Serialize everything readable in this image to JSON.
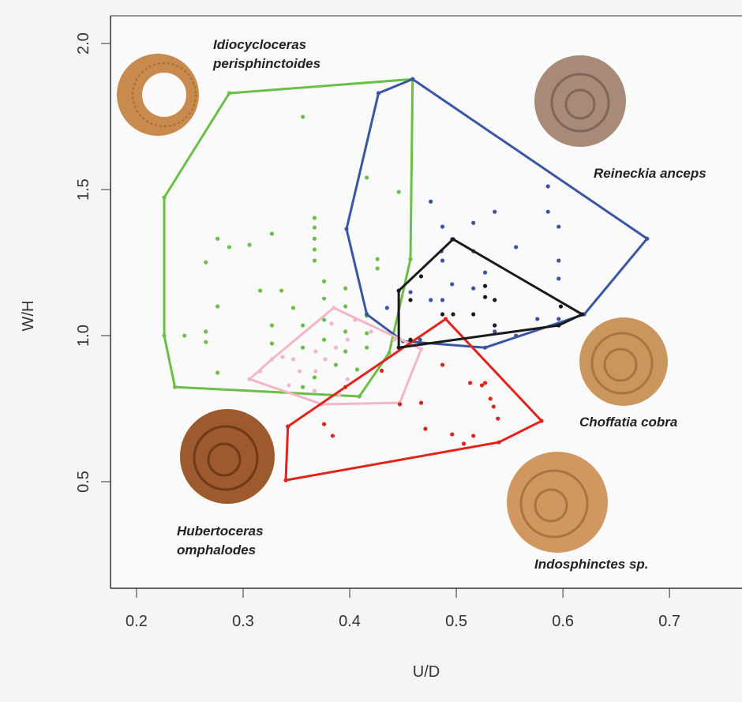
{
  "chart_data": {
    "type": "scatter",
    "x_label": "U/D",
    "y_label": "W/H",
    "xlim": [
      0.1756,
      0.768
    ],
    "ylim": [
      0.135,
      2.095
    ],
    "xticks": [
      0.2,
      0.3,
      0.4,
      0.5,
      0.6,
      0.7
    ],
    "yticks": [
      0.5,
      {
        "value": 1,
        "label": "1.0"
      },
      1.5,
      {
        "value": 2,
        "label": "2.0"
      }
    ],
    "hull": true,
    "series": [
      {
        "name": "Idiocycloceras perisphinctoides",
        "color": "#6abf45",
        "x": [
          0.287,
          0.459,
          0.457,
          0.437,
          0.409,
          0.236,
          0.226,
          0.226,
          0.356,
          0.416,
          0.446,
          0.276,
          0.287,
          0.306,
          0.327,
          0.367,
          0.367,
          0.367,
          0.367,
          0.367,
          0.265,
          0.426,
          0.426,
          0.276,
          0.316,
          0.336,
          0.347,
          0.376,
          0.376,
          0.396,
          0.396,
          0.416,
          0.416,
          0.416,
          0.396,
          0.396,
          0.376,
          0.376,
          0.356,
          0.356,
          0.327,
          0.327,
          0.265,
          0.265,
          0.245,
          0.276,
          0.407,
          0.387,
          0.356,
          0.367
        ],
        "y": [
          1.83,
          1.878,
          1.262,
          0.941,
          0.792,
          0.824,
          1.0,
          1.473,
          1.749,
          1.541,
          1.492,
          1.332,
          1.303,
          1.311,
          1.349,
          1.403,
          1.37,
          1.332,
          1.295,
          1.257,
          1.251,
          1.262,
          1.23,
          1.1,
          1.154,
          1.154,
          1.095,
          1.186,
          1.127,
          1.162,
          1.1,
          1.068,
          1.008,
          0.959,
          1.014,
          0.946,
          1.054,
          0.986,
          1.035,
          0.959,
          1.035,
          0.973,
          1.014,
          0.978,
          1.0,
          0.873,
          0.884,
          0.9,
          0.824,
          0.857
        ]
      },
      {
        "name": "Reineckia anceps",
        "color": "#3a55a4",
        "x": [
          0.427,
          0.459,
          0.679,
          0.62,
          0.527,
          0.45,
          0.416,
          0.397,
          0.476,
          0.487,
          0.586,
          0.586,
          0.596,
          0.536,
          0.516,
          0.556,
          0.496,
          0.486,
          0.516,
          0.487,
          0.496,
          0.516,
          0.527,
          0.596,
          0.596,
          0.476,
          0.487,
          0.536,
          0.556,
          0.576,
          0.596,
          0.466,
          0.435,
          0.457
        ],
        "y": [
          1.83,
          1.878,
          1.332,
          1.073,
          0.959,
          0.981,
          1.073,
          1.365,
          1.459,
          1.373,
          1.511,
          1.424,
          1.373,
          1.424,
          1.386,
          1.303,
          1.33,
          1.289,
          1.289,
          1.257,
          1.176,
          1.162,
          1.216,
          1.257,
          1.195,
          1.122,
          1.122,
          1.014,
          1.0,
          1.057,
          1.057,
          0.986,
          1.095,
          1.149
        ]
      },
      {
        "name": "Hubertoceras omphalodes",
        "color": "#f4b6c6",
        "x": [
          0.306,
          0.385,
          0.467,
          0.447,
          0.374,
          0.316,
          0.327,
          0.337,
          0.347,
          0.368,
          0.377,
          0.387,
          0.398,
          0.383,
          0.405,
          0.42,
          0.353,
          0.343,
          0.398,
          0.368,
          0.442,
          0.39,
          0.367
        ],
        "y": [
          0.851,
          1.095,
          0.954,
          0.77,
          0.765,
          0.878,
          0.919,
          0.927,
          0.919,
          0.946,
          0.919,
          0.959,
          0.986,
          1.041,
          1.054,
          1.014,
          0.878,
          0.83,
          0.851,
          0.878,
          0.986,
          0.797,
          0.811
        ]
      },
      {
        "name": "Indosphinctes sp.",
        "color": "#e2231a",
        "x": [
          0.34,
          0.342,
          0.49,
          0.58,
          0.54,
          0.376,
          0.384,
          0.396,
          0.43,
          0.447,
          0.467,
          0.471,
          0.516,
          0.496,
          0.507,
          0.527,
          0.524,
          0.532,
          0.535,
          0.539,
          0.513,
          0.487
        ],
        "y": [
          0.505,
          0.689,
          1.057,
          0.708,
          0.635,
          0.697,
          0.657,
          0.824,
          0.88,
          0.765,
          0.77,
          0.681,
          0.657,
          0.662,
          0.63,
          0.838,
          0.83,
          0.784,
          0.757,
          0.716,
          0.838,
          0.9
        ]
      },
      {
        "name": "Choffatia cobra",
        "color": "#1a1a1a",
        "x": [
          0.497,
          0.618,
          0.596,
          0.446,
          0.446,
          0.467,
          0.527,
          0.527,
          0.536,
          0.516,
          0.487,
          0.536,
          0.497,
          0.598,
          0.457,
          0.457
        ],
        "y": [
          1.33,
          1.073,
          1.035,
          0.959,
          1.154,
          1.203,
          1.17,
          1.132,
          1.122,
          1.073,
          1.073,
          1.035,
          1.073,
          1.1,
          1.122,
          0.986
        ]
      }
    ]
  }
}
